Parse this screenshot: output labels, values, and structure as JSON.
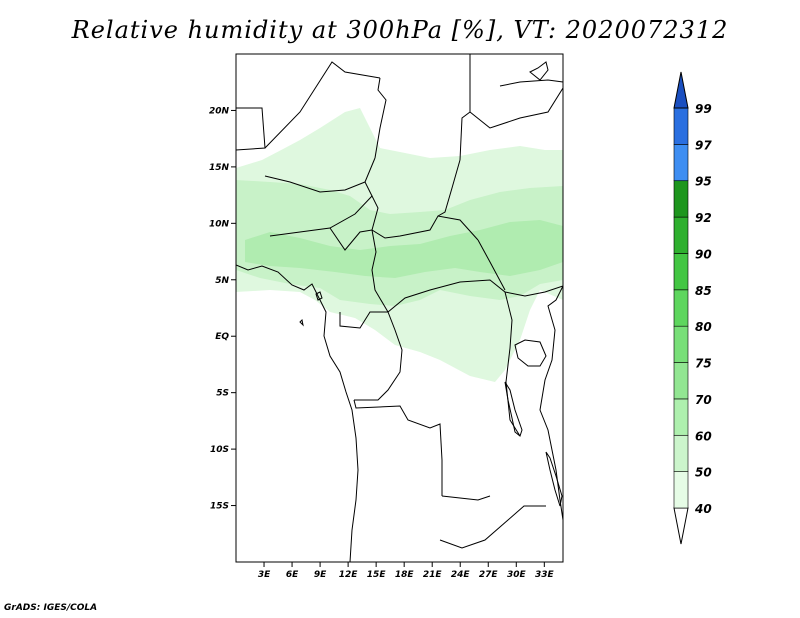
{
  "title": "Relative humidity at 300hPa [%], VT: 2020072312",
  "credit": "GrADS: IGES/COLA",
  "map": {
    "lon_range": [
      0,
      35
    ],
    "lat_range": [
      -20,
      25
    ],
    "lat_ticks": [
      {
        "value": 20,
        "label": "20N"
      },
      {
        "value": 15,
        "label": "15N"
      },
      {
        "value": 10,
        "label": "10N"
      },
      {
        "value": 5,
        "label": "5N"
      },
      {
        "value": 0,
        "label": "EQ"
      },
      {
        "value": -5,
        "label": "5S"
      },
      {
        "value": -10,
        "label": "10S"
      },
      {
        "value": -15,
        "label": "15S"
      }
    ],
    "lon_ticks": [
      {
        "value": 3,
        "label": "3E"
      },
      {
        "value": 6,
        "label": "6E"
      },
      {
        "value": 9,
        "label": "9E"
      },
      {
        "value": 12,
        "label": "12E"
      },
      {
        "value": 15,
        "label": "15E"
      },
      {
        "value": 18,
        "label": "18E"
      },
      {
        "value": 21,
        "label": "21E"
      },
      {
        "value": 24,
        "label": "24E"
      },
      {
        "value": 27,
        "label": "27E"
      },
      {
        "value": 30,
        "label": "30E"
      },
      {
        "value": 33,
        "label": "33E"
      }
    ]
  },
  "colorbar": {
    "levels": [
      "40",
      "50",
      "60",
      "70",
      "75",
      "80",
      "85",
      "90",
      "92",
      "95",
      "97",
      "99"
    ],
    "colors": [
      "#e6fce6",
      "#ccf5cc",
      "#aef0ae",
      "#92e692",
      "#78df78",
      "#5ed65e",
      "#43c643",
      "#2fb02f",
      "#1e961e",
      "#3e8ef2",
      "#2a6fe0",
      "#1a4fc0"
    ],
    "under_color": "#ffffff"
  }
}
